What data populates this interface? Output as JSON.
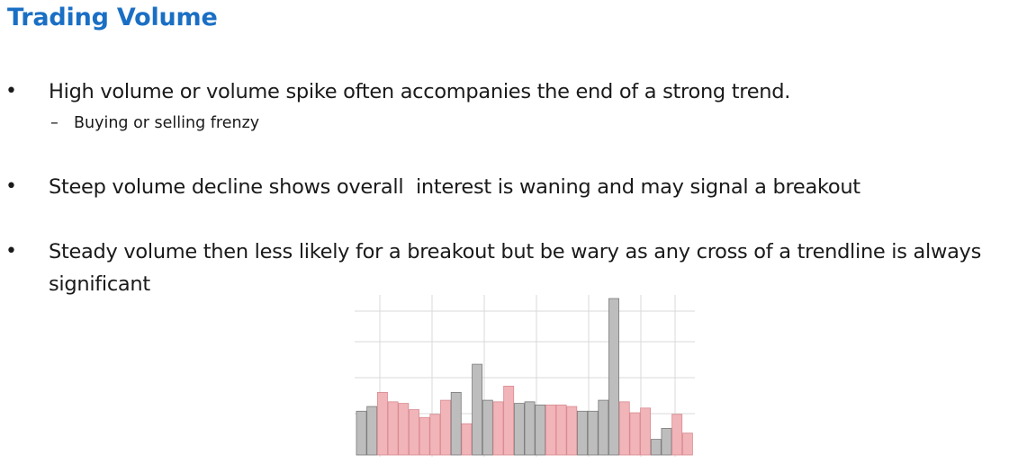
{
  "slide": {
    "title": "Trading Volume"
  },
  "bullets": [
    {
      "text": "High volume or volume spike often accompanies the end of a strong trend.",
      "sub": "Buying or selling frenzy"
    },
    {
      "text": "Steep volume decline shows overall  interest is waning and may signal a breakout"
    },
    {
      "text": "Steady volume then less likely for a breakout but be wary as any cross of a trendline is always significant"
    }
  ],
  "symbols": {
    "bullet": "•",
    "dash": "–"
  },
  "colors": {
    "title": "#1a6fc4",
    "text": "#1a1a1a",
    "bar_up": "#bdbdbd",
    "bar_up_stroke": "#7a7a7a",
    "bar_down": "#f1b4b8",
    "bar_down_stroke": "#d88a90",
    "grid": "#d9d9d9"
  },
  "chart_data": {
    "type": "bar",
    "title": "",
    "xlabel": "",
    "ylabel": "",
    "grid": true,
    "ylim": [
      0,
      100
    ],
    "values": [
      28,
      31,
      40,
      34,
      33,
      29,
      24,
      26,
      35,
      40,
      20,
      58,
      35,
      34,
      44,
      33,
      34,
      32,
      32,
      32,
      31,
      28,
      28,
      35,
      100,
      34,
      27,
      30,
      10,
      17,
      26,
      14
    ],
    "colors": [
      "up",
      "up",
      "down",
      "down",
      "down",
      "down",
      "down",
      "down",
      "down",
      "up",
      "down",
      "up",
      "up",
      "down",
      "down",
      "up",
      "up",
      "up",
      "down",
      "down",
      "down",
      "up",
      "up",
      "up",
      "up",
      "down",
      "down",
      "down",
      "up",
      "up",
      "down",
      "down"
    ]
  }
}
